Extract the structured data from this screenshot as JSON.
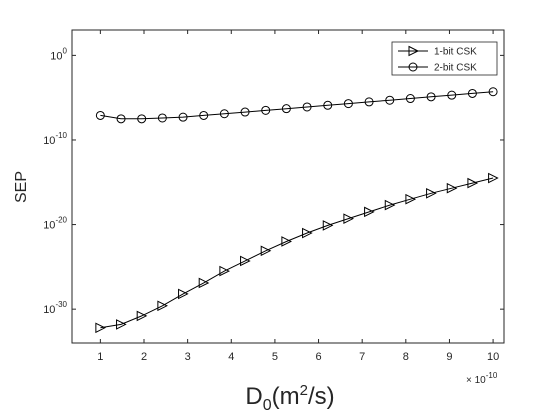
{
  "chart_data": {
    "type": "line",
    "title": "",
    "xlabel": "D0(m2/s)",
    "xlabel_parts": {
      "base": "D",
      "sub": "0",
      "open": "(m",
      "sup": "2",
      "close": "/s)"
    },
    "ylabel": "SEP",
    "x_multiplier": {
      "base": "× 10",
      "exp": "-10"
    },
    "x_scale_exponent": -10,
    "xlim": [
      0.35,
      10.25
    ],
    "ylim_log10": [
      -34,
      3
    ],
    "yscale": "log",
    "grid": false,
    "legend_position": "top-right",
    "x_ticks": [
      1,
      2,
      3,
      4,
      5,
      6,
      7,
      8,
      9,
      10
    ],
    "x_tick_labels": [
      "1",
      "2",
      "3",
      "4",
      "5",
      "6",
      "7",
      "8",
      "9",
      "10"
    ],
    "y_ticks_log10": [
      0,
      -10,
      -20,
      -30
    ],
    "y_tick_labels": [
      {
        "base": "10",
        "exp": "0"
      },
      {
        "base": "10",
        "exp": "-10"
      },
      {
        "base": "10",
        "exp": "-20"
      },
      {
        "base": "10",
        "exp": "-30"
      }
    ],
    "x": [
      1.0,
      1.474,
      1.947,
      2.421,
      2.895,
      3.368,
      3.842,
      4.316,
      4.789,
      5.263,
      5.737,
      6.211,
      6.684,
      7.158,
      7.632,
      8.105,
      8.579,
      9.053,
      9.526,
      10.0
    ],
    "series": [
      {
        "name": "1-bit CSK",
        "marker": "triangle-right",
        "color": "#000000",
        "log10_values": [
          -32.2,
          -31.8,
          -30.8,
          -29.6,
          -28.2,
          -26.9,
          -25.5,
          -24.3,
          -23.1,
          -22.0,
          -21.0,
          -20.1,
          -19.3,
          -18.5,
          -17.7,
          -17.0,
          -16.3,
          -15.7,
          -15.1,
          -14.5
        ]
      },
      {
        "name": "2-bit CSK",
        "marker": "circle",
        "color": "#000000",
        "log10_values": [
          -7.1,
          -7.5,
          -7.5,
          -7.4,
          -7.3,
          -7.1,
          -6.9,
          -6.7,
          -6.5,
          -6.3,
          -6.1,
          -5.9,
          -5.7,
          -5.5,
          -5.3,
          -5.1,
          -4.9,
          -4.7,
          -4.5,
          -4.3
        ]
      }
    ]
  }
}
